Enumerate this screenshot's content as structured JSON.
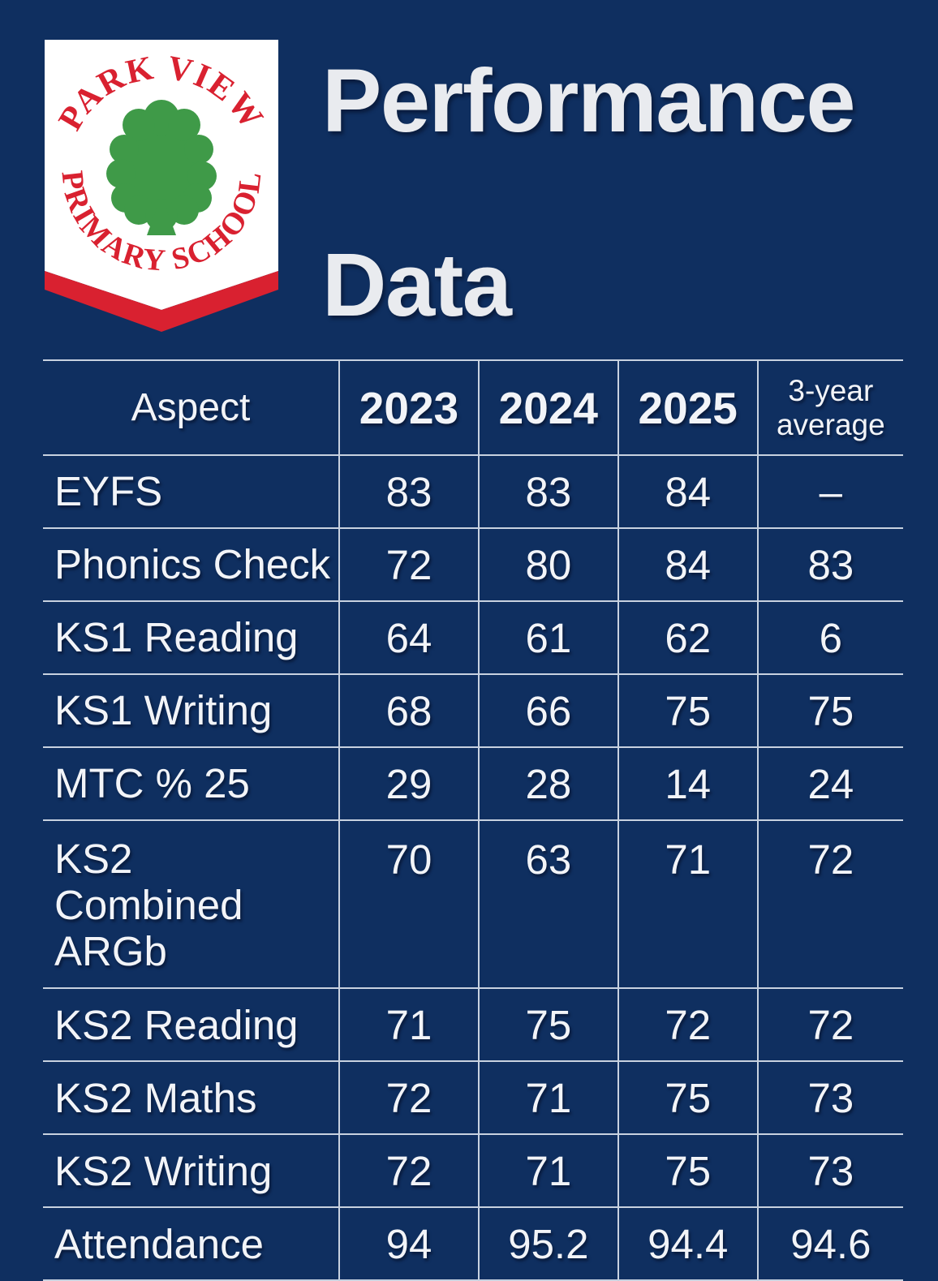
{
  "page": {
    "background": "#0f2f60",
    "line_color": "#c8d2e0",
    "text_color": "#f2f4f8"
  },
  "logo": {
    "top_text": "PARK VIEW",
    "bottom_text": "PRIMARY SCHOOL",
    "colors": {
      "red": "#d92130",
      "green": "#3f9a48",
      "shield": "#ffffff"
    }
  },
  "title": {
    "line1": "Performance",
    "line2": "Data"
  },
  "table": {
    "headers": [
      "Aspect",
      "2023",
      "2024",
      "2025",
      "3-year average"
    ],
    "rows": [
      {
        "label": "EYFS",
        "values": [
          "83",
          "83",
          "84",
          "–"
        ]
      },
      {
        "label": "Phonics Check",
        "values": [
          "72",
          "80",
          "84",
          "83"
        ]
      },
      {
        "label": "KS1 Reading",
        "values": [
          "64",
          "61",
          "62",
          "6"
        ]
      },
      {
        "label": "KS1 Writing",
        "values": [
          "68",
          "66",
          "75",
          "75"
        ]
      },
      {
        "label": "MTC % 25",
        "values": [
          "29",
          "28",
          "14",
          "24"
        ]
      },
      {
        "label": "KS2 Combined ARGb",
        "values": [
          "70",
          "63",
          "71",
          "72"
        ]
      },
      {
        "label": "KS2 Reading",
        "values": [
          "71",
          "75",
          "72",
          "72"
        ]
      },
      {
        "label": "KS2 Maths",
        "values": [
          "72",
          "71",
          "75",
          "73"
        ]
      },
      {
        "label": "KS2 Writing",
        "values": [
          "72",
          "71",
          "75",
          "73"
        ]
      },
      {
        "label": "Attendance",
        "values": [
          "94",
          "95.2",
          "94.4",
          "94.6"
        ]
      }
    ]
  },
  "chart_data": {
    "type": "table",
    "title": "Performance Data",
    "columns": [
      "Aspect",
      "2023",
      "2024",
      "2025",
      "3-year average"
    ],
    "rows": [
      [
        "EYFS",
        83,
        83,
        84,
        null
      ],
      [
        "Phonics Check",
        72,
        80,
        84,
        83
      ],
      [
        "KS1 Reading",
        64,
        61,
        62,
        6
      ],
      [
        "KS1 Writing",
        68,
        66,
        75,
        75
      ],
      [
        "MTC % 25",
        29,
        28,
        14,
        24
      ],
      [
        "KS2 Combined ARGb",
        70,
        63,
        71,
        72
      ],
      [
        "KS2 Reading",
        71,
        75,
        72,
        72
      ],
      [
        "KS2 Maths",
        72,
        71,
        75,
        73
      ],
      [
        "KS2 Writing",
        72,
        71,
        75,
        73
      ],
      [
        "Attendance",
        94,
        95.2,
        94.4,
        94.6
      ]
    ]
  }
}
